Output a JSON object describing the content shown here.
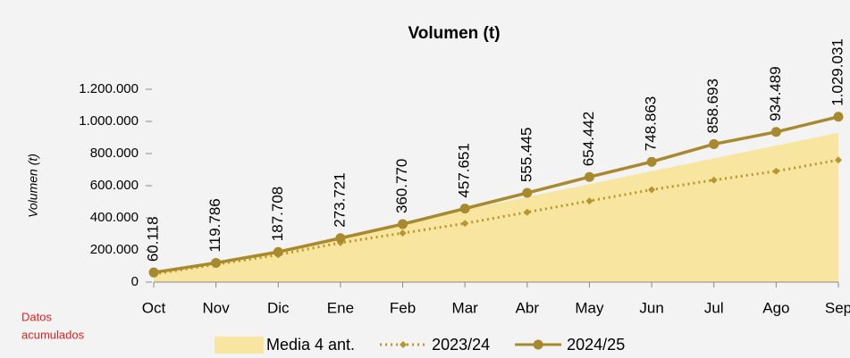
{
  "chart_data": {
    "type": "line",
    "title": "Volumen (t)",
    "y_label": "Volumen (t)",
    "annotation": [
      "Datos",
      "acumulados"
    ],
    "categories": [
      "Oct",
      "Nov",
      "Dic",
      "Ene",
      "Feb",
      "Mar",
      "Abr",
      "May",
      "Jun",
      "Jul",
      "Ago",
      "Sep"
    ],
    "ylim": [
      0,
      1200000
    ],
    "yticks": [
      0,
      {
        "value": 200000,
        "label": "200.000"
      },
      {
        "value": 400000,
        "label": "400.000"
      },
      {
        "value": 600000,
        "label": "600.000"
      },
      {
        "value": 800000,
        "label": "800.000"
      },
      {
        "value": 1000000,
        "label": "1.000.000"
      },
      {
        "value": 1200000,
        "label": "1.200.000"
      }
    ],
    "grid": false,
    "series": [
      {
        "name": "Media 4 ant.",
        "color": "#f8e6a0",
        "style": "area",
        "values": [
          65000,
          130000,
          200000,
          280000,
          370000,
          450000,
          530000,
          610000,
          690000,
          770000,
          850000,
          930000
        ]
      },
      {
        "name": "2023/24",
        "color": "#b8962e",
        "style": "dotted",
        "values": [
          50000,
          110000,
          170000,
          245000,
          305000,
          365000,
          435000,
          505000,
          575000,
          635000,
          690000,
          760000
        ]
      },
      {
        "name": "2024/25",
        "color": "#a8892e",
        "style": "solid",
        "values": [
          60118,
          119786,
          187708,
          273721,
          360770,
          457651,
          555445,
          654442,
          748863,
          858693,
          934489,
          1029031
        ],
        "value_labels": [
          "60.118",
          "119.786",
          "187.708",
          "273.721",
          "360.770",
          "457.651",
          "555.445",
          "654.442",
          "748.863",
          "858.693",
          "934.489",
          "1.029.031"
        ]
      }
    ]
  }
}
